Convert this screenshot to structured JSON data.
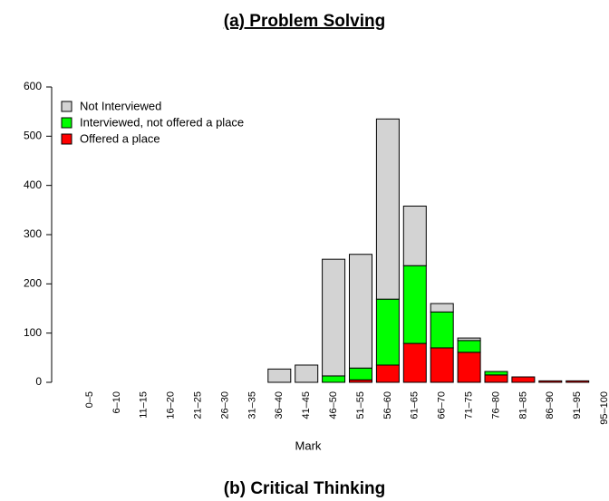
{
  "chart_data": {
    "type": "bar",
    "stacked": true,
    "title": "(a) Problem Solving",
    "next_title": "(b) Critical Thinking",
    "x_label": "Mark",
    "categories": [
      "0–5",
      "6–10",
      "11–15",
      "16–20",
      "21–25",
      "26–30",
      "31–35",
      "36–40",
      "41–45",
      "46–50",
      "51–55",
      "56–60",
      "61–65",
      "66–70",
      "71–75",
      "76–80",
      "81–85",
      "86–90",
      "91–95",
      "95–100"
    ],
    "series": [
      {
        "name": "Not Interviewed",
        "color": "#d3d3d3",
        "values": [
          0,
          0,
          0,
          0,
          0,
          0,
          0,
          27,
          35,
          237,
          231,
          366,
          121,
          17,
          5,
          0,
          0,
          0,
          0,
          0
        ]
      },
      {
        "name": "Interviewed, not offered a place",
        "color": "#00ff00",
        "values": [
          0,
          0,
          0,
          0,
          0,
          0,
          0,
          0,
          0,
          13,
          24,
          134,
          158,
          73,
          24,
          7,
          0,
          0,
          0,
          0
        ]
      },
      {
        "name": "Offered a place",
        "color": "#ff0000",
        "values": [
          0,
          0,
          0,
          0,
          0,
          0,
          0,
          0,
          0,
          0,
          5,
          35,
          79,
          70,
          61,
          15,
          11,
          3,
          3,
          0
        ]
      }
    ],
    "ylim": [
      0,
      600
    ],
    "yticks": [
      0,
      100,
      200,
      300,
      400,
      500,
      600
    ],
    "legend": "upper left"
  }
}
